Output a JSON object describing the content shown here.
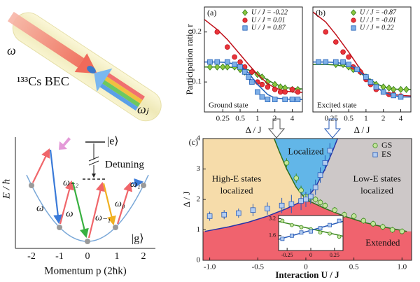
{
  "chart_data": [
    {
      "type": "scatter",
      "title": "(a)",
      "ylabel": "Participation ratio r",
      "xlabel": "Δ / J",
      "annotation": "Ground state",
      "xlog": true,
      "xlim": [
        0.12,
        6
      ],
      "xticks": [
        0.25,
        0.5,
        1,
        2,
        4
      ],
      "ylim": [
        0.04,
        0.25
      ],
      "yticks": [
        0.1,
        0.2
      ],
      "legend": "upper right",
      "series": [
        {
          "name": "U / J = -0.22",
          "marker": "diamond",
          "color": "#8cc63f",
          "edgecolor": "#2f7a1a",
          "x": [
            0.15,
            0.2,
            0.25,
            0.3,
            0.4,
            0.5,
            0.6,
            0.8,
            1,
            1.2,
            1.5,
            2,
            2.5,
            3,
            4,
            5
          ],
          "values": [
            0.13,
            0.13,
            0.13,
            0.13,
            0.13,
            0.125,
            0.12,
            0.12,
            0.115,
            0.11,
            0.1,
            0.095,
            0.09,
            0.088,
            0.085,
            0.085
          ],
          "fit_x": [
            0.12,
            0.2,
            0.3,
            0.5,
            0.7,
            1,
            1.5,
            2,
            3,
            4,
            6
          ],
          "fit": [
            0.13,
            0.13,
            0.13,
            0.128,
            0.124,
            0.116,
            0.104,
            0.096,
            0.089,
            0.087,
            0.086
          ]
        },
        {
          "name": "U / J = 0.01",
          "marker": "circle",
          "color": "#e8343a",
          "edgecolor": "#c0101a",
          "x": [
            0.2,
            0.3,
            0.4,
            0.5,
            0.6,
            0.8,
            1,
            1.2,
            1.5,
            2,
            2.5,
            3,
            4,
            5
          ],
          "values": [
            0.2,
            0.17,
            0.15,
            0.14,
            0.13,
            0.12,
            0.1,
            0.095,
            0.09,
            0.085,
            0.08,
            0.08,
            0.085,
            0.08
          ],
          "fit_x": [
            0.12,
            0.2,
            0.3,
            0.5,
            0.7,
            1,
            1.5,
            2,
            3,
            4,
            6
          ],
          "fit": [
            0.225,
            0.205,
            0.185,
            0.155,
            0.135,
            0.115,
            0.097,
            0.088,
            0.082,
            0.08,
            0.079
          ]
        },
        {
          "name": "U / J = 0.87",
          "marker": "square",
          "color": "#7fb0e8",
          "edgecolor": "#1f5fb8",
          "x": [
            0.15,
            0.2,
            0.3,
            0.4,
            0.5,
            0.6,
            0.7,
            0.8,
            1,
            1.2,
            1.5,
            2,
            3,
            4,
            5
          ],
          "values": [
            0.14,
            0.14,
            0.14,
            0.135,
            0.13,
            0.12,
            0.11,
            0.1,
            0.08,
            0.07,
            0.065,
            0.065,
            0.065,
            0.065,
            0.065
          ],
          "fit_x": [
            0.12,
            0.2,
            0.3,
            0.5,
            0.7,
            1,
            1.5,
            2,
            3,
            4,
            6
          ],
          "fit": [
            0.14,
            0.14,
            0.139,
            0.133,
            0.118,
            0.095,
            0.075,
            0.068,
            0.066,
            0.065,
            0.065
          ]
        }
      ]
    },
    {
      "type": "scatter",
      "title": "(b)",
      "xlabel": "Δ / J",
      "annotation": "Excited state",
      "xlog": true,
      "xlim": [
        0.12,
        6
      ],
      "xticks": [
        0.25,
        0.5,
        1,
        2,
        4
      ],
      "ylim": [
        0.04,
        0.25
      ],
      "legend": "upper right",
      "series": [
        {
          "name": "U / J = -0.87",
          "marker": "diamond",
          "color": "#8cc63f",
          "edgecolor": "#2f7a1a",
          "x": [
            0.3,
            0.4,
            0.5,
            0.6,
            0.8,
            1,
            1.2,
            1.5,
            2,
            2.5,
            3,
            4,
            5
          ],
          "values": [
            0.135,
            0.135,
            0.13,
            0.125,
            0.12,
            0.11,
            0.1,
            0.095,
            0.09,
            0.088,
            0.085,
            0.085,
            0.085
          ],
          "fit_x": [
            0.12,
            0.2,
            0.3,
            0.5,
            0.7,
            1,
            1.5,
            2,
            3,
            4,
            6
          ],
          "fit": [
            0.135,
            0.135,
            0.134,
            0.13,
            0.122,
            0.11,
            0.097,
            0.09,
            0.086,
            0.085,
            0.085
          ]
        },
        {
          "name": "U / J = -0.01",
          "marker": "circle",
          "color": "#e8343a",
          "edgecolor": "#c0101a",
          "x": [
            0.2,
            0.3,
            0.4,
            0.5,
            0.6,
            0.8,
            1,
            1.2,
            1.5,
            2,
            2.5,
            3,
            4
          ],
          "values": [
            0.2,
            0.18,
            0.16,
            0.15,
            0.13,
            0.12,
            0.105,
            0.095,
            0.085,
            0.08,
            0.075,
            0.075,
            0.072
          ],
          "fit_x": [
            0.12,
            0.2,
            0.3,
            0.5,
            0.7,
            1,
            1.5,
            2,
            3,
            4,
            6
          ],
          "fit": [
            0.24,
            0.22,
            0.195,
            0.16,
            0.135,
            0.11,
            0.09,
            0.08,
            0.075,
            0.073,
            0.072
          ]
        },
        {
          "name": "U / J = 0.22",
          "marker": "square",
          "color": "#7fb0e8",
          "edgecolor": "#1f5fb8",
          "x": [
            0.15,
            0.2,
            0.3,
            0.4,
            0.5,
            0.7,
            1,
            1.2,
            1.5,
            2,
            3,
            4
          ],
          "values": [
            0.14,
            0.14,
            0.14,
            0.14,
            0.135,
            0.125,
            0.11,
            0.1,
            0.09,
            0.08,
            0.073,
            0.07
          ],
          "fit_x": [
            0.12,
            0.2,
            0.3,
            0.5,
            0.7,
            1,
            1.5,
            2,
            3,
            4,
            6
          ],
          "fit": [
            0.14,
            0.14,
            0.139,
            0.135,
            0.125,
            0.11,
            0.09,
            0.08,
            0.073,
            0.07,
            0.07
          ]
        }
      ]
    },
    {
      "type": "scatter",
      "title": "(c)",
      "xlabel": "Interaction U / J",
      "ylabel": "Δ / J",
      "xlim": [
        -1.07,
        1.1
      ],
      "xticks": [
        {
          "value": -1,
          "label": "-1.0"
        },
        -0.5,
        0,
        0.5,
        {
          "value": 1,
          "label": "1.0"
        }
      ],
      "ylim": [
        0,
        4
      ],
      "yticks": [
        0,
        1,
        2,
        3,
        4
      ],
      "legend": "upper right",
      "regions": [
        {
          "label": [
            "Localized"
          ],
          "color": "#62b6e8"
        },
        {
          "label": [
            "High-E states",
            "localized"
          ],
          "color": "#f6dcaa"
        },
        {
          "label": [
            "Low-E states",
            "localized"
          ],
          "color": "#cdc8c8"
        },
        {
          "label": [
            "Extended"
          ],
          "color": "#f0636e"
        }
      ],
      "boundaries": [
        {
          "color": "#2633a8",
          "x": [
            -1.05,
            -0.8,
            -0.6,
            -0.4,
            -0.2,
            0,
            0.1,
            0.2,
            0.28,
            0.33
          ],
          "values": [
            0.95,
            1.1,
            1.25,
            1.45,
            1.7,
            2,
            2.4,
            3.0,
            3.6,
            4
          ]
        },
        {
          "color": "#2f6e1a",
          "x": [
            -0.33,
            -0.28,
            -0.2,
            -0.1,
            0,
            0.2,
            0.4,
            0.6,
            0.8,
            1.05
          ],
          "values": [
            4,
            3.6,
            3.0,
            2.4,
            2,
            1.7,
            1.45,
            1.25,
            1.1,
            0.95
          ]
        }
      ],
      "series": [
        {
          "name": "GS",
          "marker": "circle",
          "color": "#c2e59a",
          "edgecolor": "#3d8a1f",
          "x": [
            -0.2,
            -0.1,
            -0.05,
            0,
            0.05,
            0.1,
            0.15,
            0.2,
            0.3,
            0.4,
            0.5,
            0.6,
            0.7,
            0.8,
            0.9,
            1.0
          ],
          "values": [
            3.2,
            2.7,
            2.3,
            2.1,
            2.05,
            2.0,
            1.9,
            1.8,
            1.65,
            1.5,
            1.45,
            1.3,
            1.2,
            1.1,
            1.0,
            0.95
          ],
          "errors": [
            0.15,
            0.15,
            0.15,
            0.1,
            0.1,
            0.1,
            0.1,
            0.1,
            0.1,
            0.1,
            0.1,
            0.1,
            0.1,
            0.1,
            0.1,
            0.1
          ]
        },
        {
          "name": "ES",
          "marker": "square",
          "color": "#b3cdf0",
          "edgecolor": "#2a5cb8",
          "x": [
            -1.0,
            -0.85,
            -0.7,
            -0.55,
            -0.4,
            -0.25,
            -0.15,
            -0.05,
            0,
            0.05,
            0.1,
            0.15,
            0.2,
            0.25
          ],
          "values": [
            1.45,
            1.5,
            1.55,
            1.65,
            1.7,
            1.8,
            1.85,
            1.95,
            2.0,
            2.1,
            2.4,
            2.8,
            3.2,
            3.6
          ],
          "errors": [
            0.15,
            0.15,
            0.15,
            0.2,
            0.2,
            0.25,
            0.3,
            0.3,
            0.25,
            0.25,
            0.25,
            0.25,
            0.25,
            0.25
          ]
        }
      ]
    },
    {
      "type": "scatter",
      "xlim": [
        -0.34,
        0.34
      ],
      "xticks": [
        -0.25,
        0,
        0.25
      ],
      "ylim": [
        0.2,
        3.5
      ],
      "yticks": [
        1.6,
        3.2
      ],
      "series": [
        {
          "marker": "circle",
          "color": "#c2e59a",
          "edgecolor": "#3d8a1f",
          "x": [
            -0.3,
            -0.2,
            -0.1,
            0,
            0.1,
            0.2,
            0.3
          ],
          "values": [
            3.0,
            2.6,
            2.4,
            2.2,
            1.9,
            1.8,
            1.5
          ],
          "fit_x": [
            -0.34,
            0.34
          ],
          "fit": [
            2.95,
            1.55
          ]
        },
        {
          "marker": "square",
          "color": "#b3cdf0",
          "edgecolor": "#2a5cb8",
          "x": [
            -0.3,
            -0.2,
            -0.1,
            0,
            0.1,
            0.2,
            0.3
          ],
          "values": [
            1.3,
            1.6,
            1.9,
            2.0,
            2.3,
            2.6,
            3.0
          ],
          "fit_x": [
            -0.34,
            0.34
          ],
          "fit": [
            1.25,
            2.95
          ]
        }
      ]
    }
  ],
  "illustration": {
    "beam_label": "ω",
    "bec_label": "¹³³Cs BEC",
    "tube_label": "ωⱼ"
  },
  "level_diagram": {
    "ylabel": "E / ħ",
    "xlabel": "Momentum p (2ħk)",
    "xticks": [
      "-2",
      "-1",
      "0",
      "1",
      "2"
    ],
    "transitions": [
      "ω",
      "ω₋₂",
      "ω",
      "ω₋₁",
      "ω₀",
      "ω₁"
    ],
    "excited": "|e⟩",
    "detuning": "Detuning",
    "ground": "|g⟩"
  }
}
